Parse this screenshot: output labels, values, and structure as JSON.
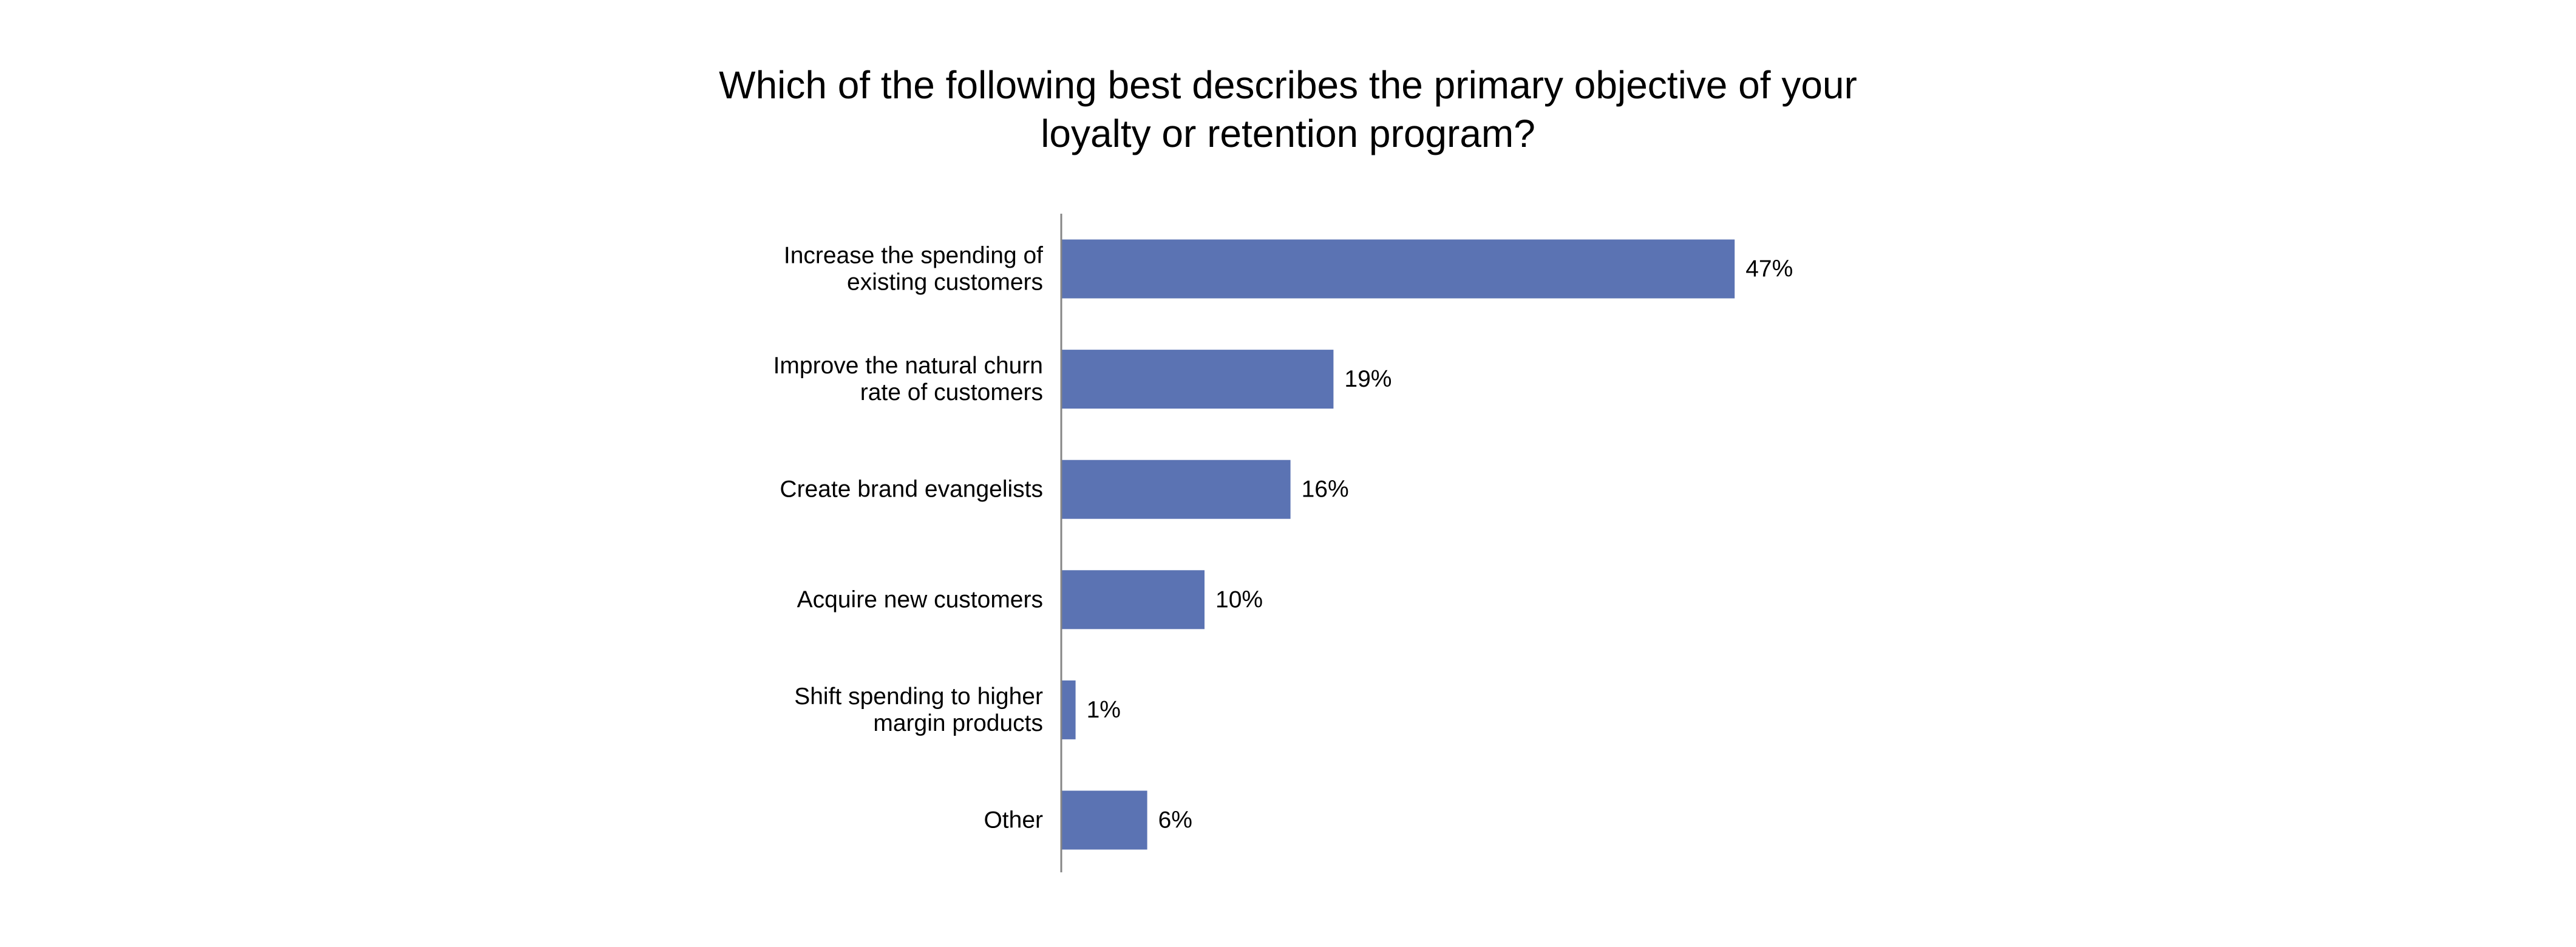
{
  "chart_data": {
    "type": "bar",
    "orientation": "horizontal",
    "title": "Which of the following best describes the primary objective of your loyalty or retention program?",
    "title_lines": [
      "Which of the following best describes the primary objective of your",
      "loyalty or retention program?"
    ],
    "categories": [
      [
        "Increase the spending of",
        "existing customers"
      ],
      [
        "Improve the natural churn",
        "rate of customers"
      ],
      [
        "Create brand evangelists"
      ],
      [
        "Acquire new customers"
      ],
      [
        "Shift spending to higher",
        "margin products"
      ],
      [
        "Other"
      ]
    ],
    "values": [
      47,
      19,
      16,
      10,
      1,
      6
    ],
    "value_labels": [
      "47%",
      "19%",
      "16%",
      "10%",
      "1%",
      "6%"
    ],
    "unit": "%",
    "xlim": [
      0,
      100
    ],
    "grid": false,
    "legend": "none",
    "bar_color": "#5b73b3",
    "axis_color": "#868686"
  }
}
